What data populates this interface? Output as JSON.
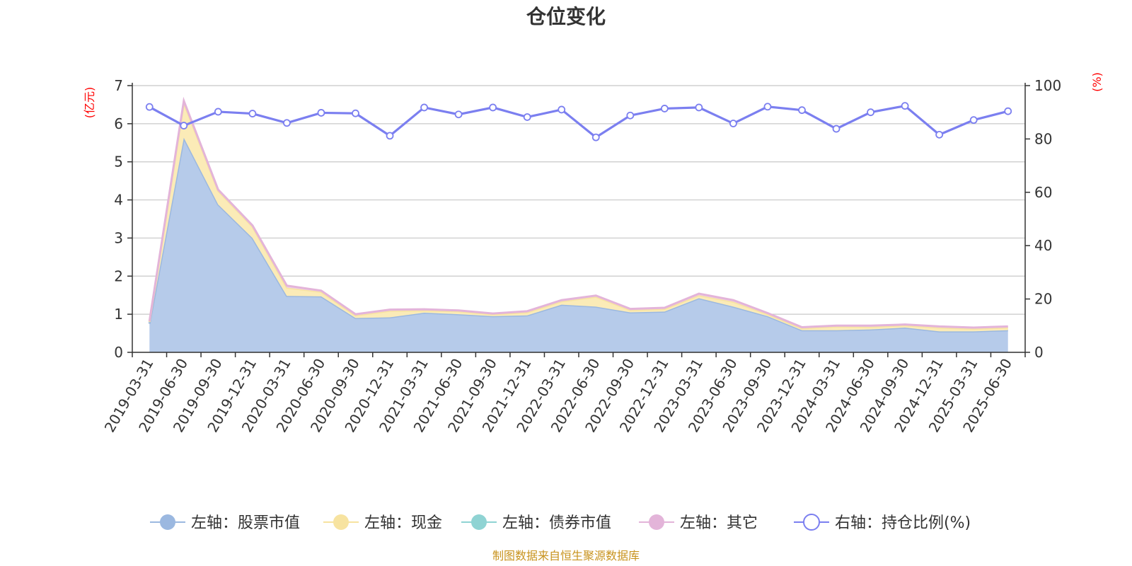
{
  "chart_data": {
    "type": "area",
    "title": "仓位变化",
    "left_axis_unit": "(亿元)",
    "right_axis_unit": "(%)",
    "left_ylim": [
      0,
      7
    ],
    "left_yticks": [
      "0",
      "1",
      "2",
      "3",
      "4",
      "5",
      "6",
      "7"
    ],
    "right_ylim": [
      0,
      100
    ],
    "right_yticks": [
      "0",
      "20",
      "40",
      "60",
      "80",
      "100"
    ],
    "grid": true,
    "legend_position": "bottom",
    "categories": [
      "2019-03-31",
      "2019-06-30",
      "2019-09-30",
      "2019-12-31",
      "2020-03-31",
      "2020-06-30",
      "2020-09-30",
      "2020-12-31",
      "2021-03-31",
      "2021-06-30",
      "2021-09-30",
      "2021-12-31",
      "2022-03-31",
      "2022-06-30",
      "2022-09-30",
      "2022-12-31",
      "2023-03-31",
      "2023-06-30",
      "2023-09-30",
      "2023-12-31",
      "2024-03-31",
      "2024-06-30",
      "2024-09-30",
      "2024-12-31",
      "2025-03-31",
      "2025-06-30"
    ],
    "series": [
      {
        "name": "左轴：股票市值",
        "axis": "left",
        "kind": "stacked-area",
        "color": "#9bb8e0",
        "fill": "#b6cbea",
        "values": [
          0.75,
          5.63,
          3.88,
          3.0,
          1.48,
          1.47,
          0.9,
          0.92,
          1.04,
          1.0,
          0.95,
          0.97,
          1.25,
          1.2,
          1.05,
          1.07,
          1.42,
          1.2,
          0.95,
          0.58,
          0.58,
          0.6,
          0.65,
          0.55,
          0.55,
          0.58
        ]
      },
      {
        "name": "左轴：现金",
        "axis": "left",
        "kind": "stacked-area",
        "color": "#f7e3a0",
        "fill": "#fbebb7",
        "values": [
          0.05,
          0.92,
          0.36,
          0.3,
          0.22,
          0.12,
          0.07,
          0.17,
          0.06,
          0.08,
          0.05,
          0.08,
          0.09,
          0.26,
          0.06,
          0.07,
          0.08,
          0.13,
          0.05,
          0.05,
          0.1,
          0.07,
          0.06,
          0.1,
          0.07,
          0.07
        ]
      },
      {
        "name": "左轴：债券市值",
        "axis": "left",
        "kind": "stacked-area",
        "color": "#8fd3d3",
        "fill": "#bde6e6",
        "values": [
          0,
          0,
          0,
          0,
          0,
          0,
          0,
          0,
          0,
          0,
          0,
          0,
          0,
          0,
          0,
          0,
          0,
          0,
          0,
          0,
          0,
          0,
          0,
          0,
          0,
          0
        ]
      },
      {
        "name": "左轴：其它",
        "axis": "left",
        "kind": "stacked-area",
        "color": "#e3b4d9",
        "fill": "#efd0e8",
        "values": [
          0.02,
          0.05,
          0.03,
          0.03,
          0.05,
          0.03,
          0.03,
          0.03,
          0.03,
          0.02,
          0.02,
          0.03,
          0.03,
          0.03,
          0.03,
          0.03,
          0.04,
          0.04,
          0.03,
          0.03,
          0.02,
          0.03,
          0.02,
          0.03,
          0.03,
          0.03
        ]
      },
      {
        "name": "右轴：持仓比例(%)",
        "axis": "right",
        "kind": "line",
        "color": "#7b7ff0",
        "values": [
          92.0,
          85.0,
          90.2,
          89.5,
          86.0,
          89.8,
          89.6,
          81.2,
          91.8,
          89.2,
          91.8,
          88.2,
          91.0,
          80.6,
          88.8,
          91.4,
          91.8,
          85.8,
          92.1,
          90.8,
          83.8,
          90.0,
          92.4,
          81.6,
          87.1,
          90.4
        ]
      }
    ],
    "source_note": "制图数据来自恒生聚源数据库"
  }
}
